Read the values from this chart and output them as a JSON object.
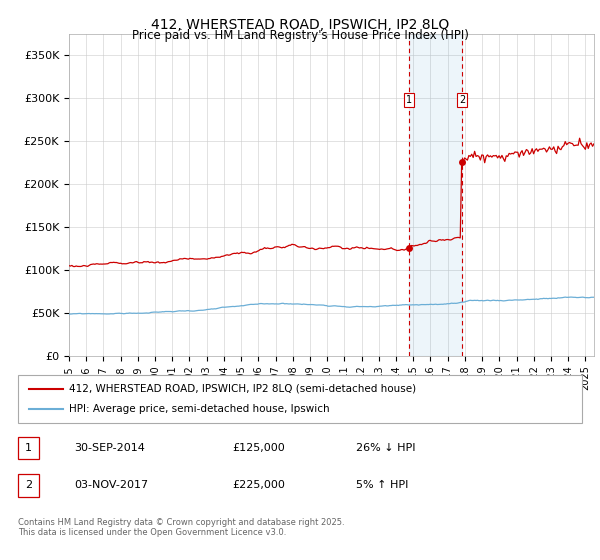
{
  "title": "412, WHERSTEAD ROAD, IPSWICH, IP2 8LQ",
  "subtitle": "Price paid vs. HM Land Registry's House Price Index (HPI)",
  "ylim": [
    0,
    375000
  ],
  "yticks": [
    0,
    50000,
    100000,
    150000,
    200000,
    250000,
    300000,
    350000
  ],
  "ytick_labels": [
    "£0",
    "£50K",
    "£100K",
    "£150K",
    "£200K",
    "£250K",
    "£300K",
    "£350K"
  ],
  "hpi_color": "#6baed6",
  "price_color": "#cc0000",
  "sale1_year": 2014.75,
  "sale1_price": 125000,
  "sale1_label": "1",
  "sale1_date": "30-SEP-2014",
  "sale1_pct": "26% ↓ HPI",
  "sale2_year": 2017.84,
  "sale2_price": 225000,
  "sale2_label": "2",
  "sale2_date": "03-NOV-2017",
  "sale2_pct": "5% ↑ HPI",
  "legend_line1": "412, WHERSTEAD ROAD, IPSWICH, IP2 8LQ (semi-detached house)",
  "legend_line2": "HPI: Average price, semi-detached house, Ipswich",
  "footer": "Contains HM Land Registry data © Crown copyright and database right 2025.\nThis data is licensed under the Open Government Licence v3.0.",
  "background_color": "#ffffff",
  "grid_color": "#cccccc",
  "xmin": 1995,
  "xmax": 2025.5
}
